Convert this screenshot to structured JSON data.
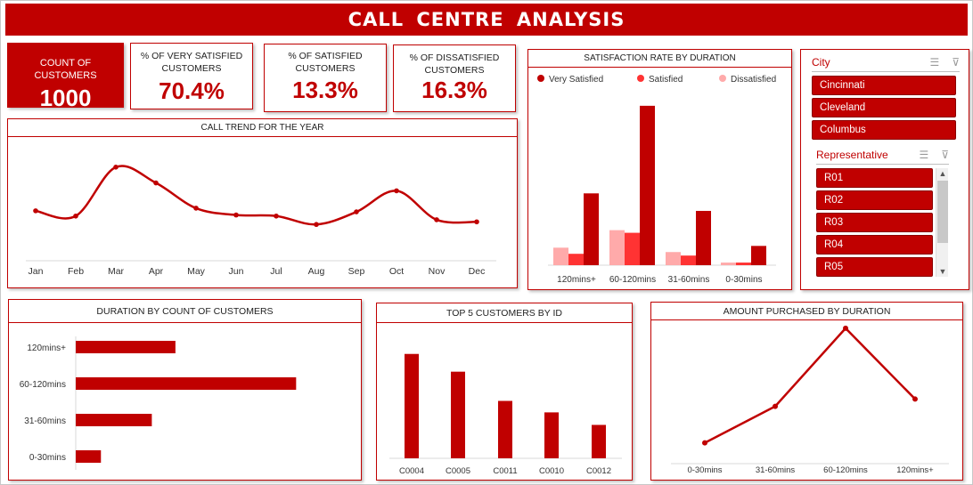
{
  "header": {
    "title": "CALL  CENTRE  ANALYSIS"
  },
  "colors": {
    "primary": "#c00000",
    "satisfied": "#ff3333",
    "dissatisfied": "#ffaaaa"
  },
  "kpis": [
    {
      "label": "COUNT OF CUSTOMERS",
      "value": "1000"
    },
    {
      "label": "% OF VERY SATISFIED CUSTOMERS",
      "value": "70.4%"
    },
    {
      "label": "% OF SATISFIED CUSTOMERS",
      "value": "13.3%"
    },
    {
      "label": "% OF  DISSATISFIED CUSTOMERS",
      "value": "16.3%"
    }
  ],
  "slicers": {
    "city": {
      "title": "City",
      "items": [
        "Cincinnati",
        "Cleveland",
        "Columbus"
      ]
    },
    "representative": {
      "title": "Representative",
      "items": [
        "R01",
        "R02",
        "R03",
        "R04",
        "R05"
      ]
    }
  },
  "chart_data": [
    {
      "id": "trend",
      "type": "line",
      "title": "CALL TREND FOR THE YEAR",
      "categories": [
        "Jan",
        "Feb",
        "Mar",
        "Apr",
        "May",
        "Jun",
        "Jul",
        "Aug",
        "Sep",
        "Oct",
        "Nov",
        "Dec"
      ],
      "values": [
        95,
        85,
        178,
        148,
        100,
        87,
        85,
        69,
        93,
        133,
        78,
        74
      ],
      "ylim": [
        0,
        220
      ]
    },
    {
      "id": "satisfaction",
      "type": "bar",
      "title": "SATISFACTION RATE BY DURATION",
      "categories": [
        "120mins+",
        "60-120mins",
        "31-60mins",
        "0-30mins"
      ],
      "series": [
        {
          "name": "Very Satisfied",
          "values": [
            82,
            182,
            62,
            22
          ]
        },
        {
          "name": "Satisfied",
          "values": [
            13,
            37,
            11,
            3
          ]
        },
        {
          "name": "Dissatisfied",
          "values": [
            20,
            40,
            15,
            3
          ]
        }
      ],
      "legend": "top",
      "ylim": [
        0,
        190
      ]
    },
    {
      "id": "duration",
      "type": "bar",
      "title": "DURATION BY COUNT OF CUSTOMERS",
      "categories": [
        "120mins+",
        "60-120mins",
        "31-60mins",
        "0-30mins"
      ],
      "values": [
        190,
        420,
        145,
        48
      ],
      "xlim": [
        0,
        450
      ]
    },
    {
      "id": "top5",
      "type": "bar",
      "title": "TOP 5 CUSTOMERS BY ID",
      "categories": [
        "C0004",
        "C0005",
        "C0011",
        "C0010",
        "C0012"
      ],
      "values": [
        100,
        83,
        55,
        44,
        32
      ],
      "ylim": [
        0,
        110
      ]
    },
    {
      "id": "amount",
      "type": "line",
      "title": "AMOUNT PURCHASED BY DURATION",
      "categories": [
        "0-30mins",
        "31-60mins",
        "60-120mins",
        "120mins+"
      ],
      "values": [
        20,
        55,
        130,
        62
      ],
      "ylim": [
        0,
        135
      ]
    }
  ]
}
